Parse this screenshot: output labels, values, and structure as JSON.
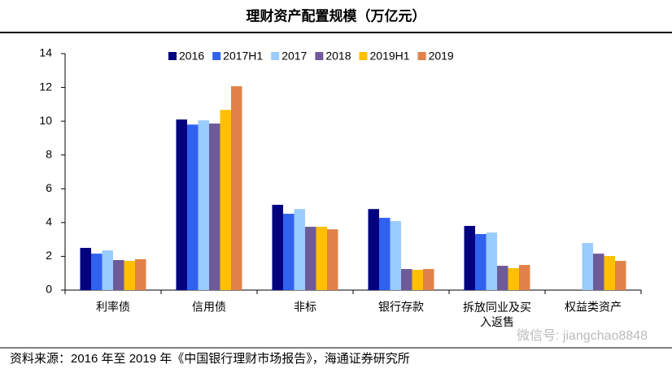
{
  "chart_data": {
    "type": "bar",
    "title": "理财资产配置规模（万亿元）",
    "categories": [
      "利率债",
      "信用债",
      "非标",
      "银行存款",
      "拆放同业及买入返售",
      "权益类资产"
    ],
    "series": [
      {
        "name": "2016",
        "color": "#000080",
        "values": [
          2.5,
          10.1,
          5.05,
          4.8,
          3.8,
          null
        ]
      },
      {
        "name": "2017H1",
        "color": "#2f62f0",
        "values": [
          2.16,
          9.8,
          4.52,
          4.28,
          3.32,
          null
        ]
      },
      {
        "name": "2017",
        "color": "#99ccff",
        "values": [
          2.35,
          10.05,
          4.8,
          4.09,
          3.41,
          2.79
        ]
      },
      {
        "name": "2018",
        "color": "#6e5b98",
        "values": [
          1.78,
          9.86,
          3.75,
          1.25,
          1.44,
          2.16
        ]
      },
      {
        "name": "2019H1",
        "color": "#ffc000",
        "values": [
          1.73,
          10.67,
          3.75,
          1.2,
          1.3,
          2.02
        ]
      },
      {
        "name": "2019",
        "color": "#e0824a",
        "values": [
          1.83,
          12.07,
          3.6,
          1.25,
          1.49,
          1.73
        ]
      }
    ],
    "ylim": [
      0,
      14
    ],
    "yticks": [
      0,
      2,
      4,
      6,
      8,
      10,
      12,
      14
    ],
    "legend": "top",
    "source": "资料来源：2016 年至 2019 年《中国银行理财市场报告》，海通证券研究所",
    "watermark": "微信号: jiangchao8848"
  }
}
